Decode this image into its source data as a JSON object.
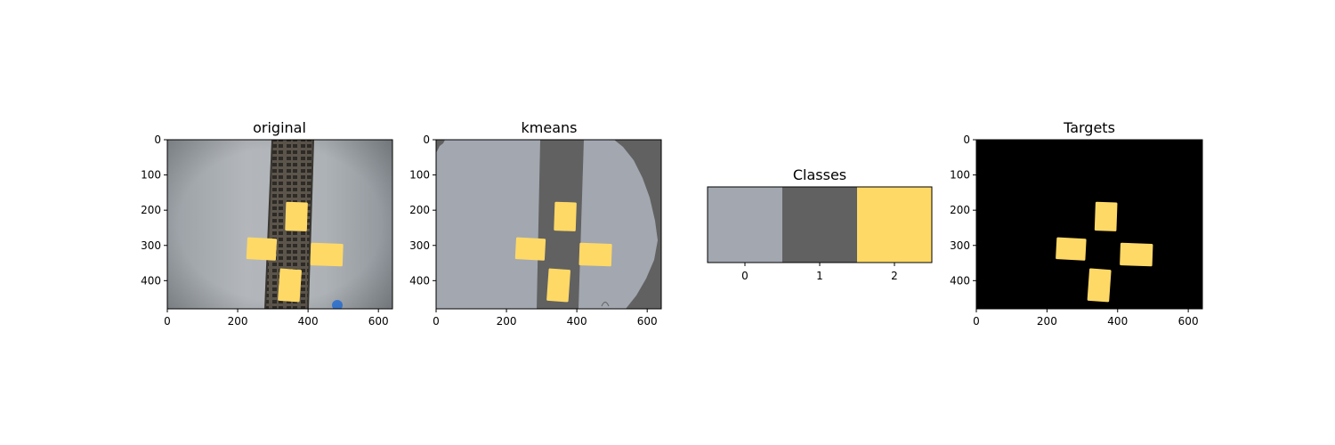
{
  "figure": {
    "panels": [
      {
        "title": "original",
        "kind": "original"
      },
      {
        "title": "kmeans",
        "kind": "kmeans"
      },
      {
        "title": "Classes",
        "kind": "classes"
      },
      {
        "title": "Targets",
        "kind": "targets"
      }
    ]
  },
  "chart_data": [
    {
      "type": "heatmap",
      "title": "original",
      "xlim": [
        0,
        640
      ],
      "ylim": [
        480,
        0
      ],
      "x_ticks": [
        "0",
        "200",
        "400",
        "600"
      ],
      "y_ticks": [
        "0",
        "100",
        "200",
        "300",
        "400"
      ],
      "content": "photograph: grey concrete floor, dark drainage grate strip, four yellow square targets, small blue object",
      "colors": {
        "floor": "#a8adb2",
        "grate": "#4f4b45",
        "target": "#ffd966",
        "blue_object": "#3b7dd8"
      }
    },
    {
      "type": "heatmap",
      "title": "kmeans",
      "xlim": [
        0,
        640
      ],
      "ylim": [
        480,
        0
      ],
      "x_ticks": [
        "0",
        "200",
        "400",
        "600"
      ],
      "y_ticks": [
        "0",
        "100",
        "200",
        "300",
        "400"
      ],
      "classes_present": [
        0,
        1,
        2
      ]
    },
    {
      "type": "heatmap",
      "title": "Classes",
      "categories": [
        "0",
        "1",
        "2"
      ],
      "values": [
        0,
        1,
        2
      ],
      "colors": [
        "#a2a7b0",
        "#616161",
        "#ffd966"
      ]
    },
    {
      "type": "heatmap",
      "title": "Targets",
      "xlim": [
        0,
        640
      ],
      "ylim": [
        480,
        0
      ],
      "x_ticks": [
        "0",
        "200",
        "400",
        "600"
      ],
      "y_ticks": [
        "0",
        "100",
        "200",
        "300",
        "400"
      ],
      "background": "#000000",
      "target_color": "#ffd966"
    }
  ],
  "targets": [
    {
      "cx": 367,
      "cy": 218,
      "w": 62,
      "h": 82,
      "angle": 2
    },
    {
      "cx": 268,
      "cy": 310,
      "w": 84,
      "h": 62,
      "angle": 3
    },
    {
      "cx": 453,
      "cy": 326,
      "w": 92,
      "h": 64,
      "angle": 2
    },
    {
      "cx": 348,
      "cy": 413,
      "w": 62,
      "h": 92,
      "angle": 4
    }
  ]
}
